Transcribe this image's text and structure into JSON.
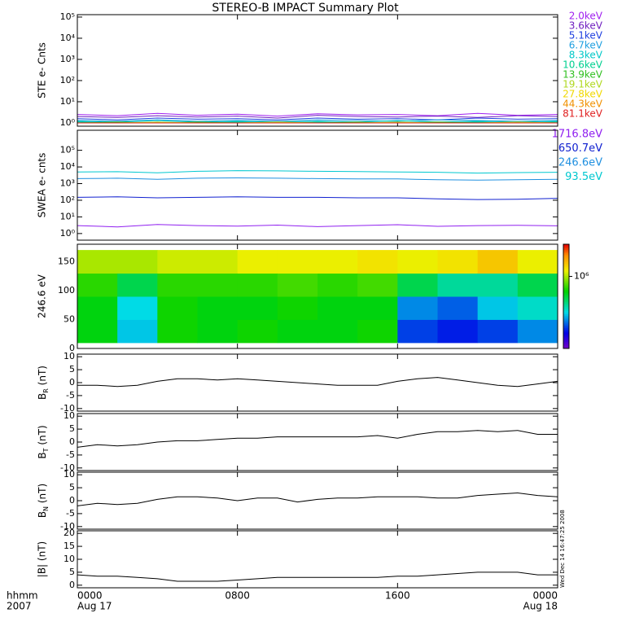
{
  "chart_data": [
    {
      "type": "line",
      "title": "STEREO-B IMPACT Summary Plot",
      "ylabel": "STE e- Cnts",
      "log": true,
      "ylim": [
        0.7,
        130000
      ],
      "yticks": [
        {
          "value": 1,
          "label": "10⁰"
        },
        {
          "value": 10,
          "label": "10¹"
        },
        {
          "value": 100,
          "label": "10²"
        },
        {
          "value": 1000,
          "label": "10³"
        },
        {
          "value": 10000,
          "label": "10⁴"
        },
        {
          "value": 100000,
          "label": "10⁵"
        }
      ],
      "xlim": [
        0,
        24
      ],
      "xticks": [
        0,
        8,
        16,
        24
      ],
      "x": [
        0,
        2,
        4,
        6,
        8,
        10,
        12,
        14,
        16,
        18,
        20,
        22,
        24
      ],
      "series": [
        {
          "name": "2.0keV",
          "color": "#a020f0",
          "values": [
            2.5,
            2.2,
            2.8,
            2.3,
            2.6,
            2.1,
            2.7,
            2.4,
            2.5,
            2.2,
            2.8,
            2.3,
            2.5
          ]
        },
        {
          "name": "3.6keV",
          "color": "#7020c0",
          "values": [
            2,
            1.8,
            2.2,
            1.9,
            2.1,
            1.7,
            2.3,
            2,
            1.9,
            2.1,
            1.8,
            2.2,
            2
          ]
        },
        {
          "name": "5.1keV",
          "color": "#2040e0",
          "values": [
            1.6,
            1.4,
            1.7,
            1.5,
            1.6,
            1.4,
            1.7,
            1.5,
            1.6,
            1.4,
            1.7,
            1.5,
            1.6
          ]
        },
        {
          "name": "6.7keV",
          "color": "#20a0e0",
          "values": [
            1.3,
            1.2,
            1.4,
            1.2,
            1.3,
            1.2,
            1.4,
            1.3,
            1.2,
            1.4,
            1.3,
            1.2,
            1.3
          ]
        },
        {
          "name": "8.3keV",
          "color": "#00c8c8",
          "values": [
            1.2,
            1.1,
            1.3,
            1.1,
            1.2,
            1.1,
            1.2,
            1.1,
            1.3,
            1.1,
            1.2,
            1.1,
            1.2
          ]
        },
        {
          "name": "10.6keV",
          "color": "#00d090",
          "values": [
            1.1,
            1,
            1.1,
            1,
            1.1,
            1,
            1.1,
            1,
            1.1,
            1,
            1.1,
            1,
            1.1
          ]
        },
        {
          "name": "13.9keV",
          "color": "#30c020",
          "values": [
            1,
            1.1,
            1,
            1.1,
            1,
            1.1,
            1,
            1.1,
            1,
            1.1,
            1,
            1.1,
            1
          ]
        },
        {
          "name": "19.1keV",
          "color": "#b0d820",
          "values": [
            1,
            1,
            1.1,
            1,
            1,
            1.1,
            1,
            1,
            1.1,
            1,
            1,
            1.1,
            1
          ]
        },
        {
          "name": "27.8keV",
          "color": "#f0d800",
          "values": [
            1,
            1,
            1,
            1,
            1,
            1,
            1,
            1,
            1,
            1,
            1,
            1,
            1
          ]
        },
        {
          "name": "44.3keV",
          "color": "#f09000",
          "values": [
            1,
            1,
            1,
            1,
            1,
            1,
            1,
            1,
            1,
            1,
            1,
            1,
            1
          ]
        },
        {
          "name": "81.1keV",
          "color": "#e02020",
          "values": [
            1,
            1,
            1,
            1,
            1,
            1,
            1,
            1,
            1,
            1,
            1,
            1,
            1
          ]
        }
      ]
    },
    {
      "type": "line",
      "ylabel": "SWEA e- cnts",
      "log": true,
      "ylim": [
        0.4,
        1600000
      ],
      "yticks": [
        {
          "value": 1,
          "label": "10⁰"
        },
        {
          "value": 10,
          "label": "10¹"
        },
        {
          "value": 100,
          "label": "10²"
        },
        {
          "value": 1000,
          "label": "10³"
        },
        {
          "value": 10000,
          "label": "10⁴"
        },
        {
          "value": 100000,
          "label": "10⁵"
        }
      ],
      "xlim": [
        0,
        24
      ],
      "xticks": [
        0,
        8,
        16,
        24
      ],
      "x": [
        0,
        2,
        4,
        6,
        8,
        10,
        12,
        14,
        16,
        18,
        20,
        22,
        24
      ],
      "series": [
        {
          "name": "1716.8eV",
          "color": "#9020f0",
          "values": [
            3,
            2.5,
            3.5,
            3,
            2.8,
            3.2,
            2.6,
            3,
            3.4,
            2.7,
            3,
            3.1,
            2.9
          ]
        },
        {
          "name": "650.7eV",
          "color": "#1020d0",
          "values": [
            150,
            160,
            140,
            150,
            160,
            150,
            150,
            140,
            140,
            120,
            110,
            115,
            130
          ]
        },
        {
          "name": "246.6eV",
          "color": "#2090e0",
          "values": [
            2000,
            2100,
            1800,
            2100,
            2200,
            2100,
            2000,
            1900,
            1900,
            1700,
            1600,
            1700,
            1800
          ]
        },
        {
          "name": "93.5eV",
          "color": "#00c8d0",
          "values": [
            5000,
            5200,
            4500,
            5500,
            6000,
            5800,
            5500,
            5300,
            5000,
            4800,
            4300,
            4600,
            4800
          ]
        }
      ]
    },
    {
      "type": "heatmap",
      "ylabel": "246.6 eV",
      "ylim": [
        0,
        180
      ],
      "yticks": [
        0,
        50,
        100,
        150
      ],
      "xlim": [
        0,
        24
      ],
      "xticks": [
        0,
        8,
        16,
        24
      ],
      "x_bins": [
        0,
        2,
        4,
        6,
        8,
        10,
        12,
        14,
        16,
        18,
        20,
        22,
        24
      ],
      "y_bins": [
        10,
        50,
        90,
        130,
        170
      ],
      "zlim": [
        100000,
        2800000
      ],
      "zticks": [
        {
          "value": 1000000,
          "label": "10⁶"
        }
      ],
      "z": [
        [
          600000,
          600000,
          700000,
          1000000
        ],
        [
          300000,
          320000,
          500000,
          1000000
        ],
        [
          650000,
          650000,
          700000,
          1100000
        ],
        [
          600000,
          600000,
          700000,
          1100000
        ],
        [
          650000,
          600000,
          700000,
          1200000
        ],
        [
          600000,
          650000,
          750000,
          1200000
        ],
        [
          600000,
          600000,
          700000,
          1200000
        ],
        [
          650000,
          600000,
          750000,
          1300000
        ],
        [
          200000,
          250000,
          500000,
          1200000
        ],
        [
          180000,
          220000,
          400000,
          1300000
        ],
        [
          200000,
          300000,
          400000,
          1500000
        ],
        [
          250000,
          350000,
          500000,
          1200000
        ]
      ]
    },
    {
      "type": "line",
      "ylabel": {
        "main": "B",
        "sub": "R",
        "unit": "(nT)"
      },
      "ylim": [
        -11,
        11
      ],
      "yticks": [
        -10,
        -5,
        0,
        5,
        10
      ],
      "xlim": [
        0,
        24
      ],
      "xticks": [
        0,
        8,
        16,
        24
      ],
      "x": [
        0,
        1,
        2,
        3,
        4,
        5,
        6,
        7,
        8,
        9,
        10,
        11,
        12,
        13,
        14,
        15,
        16,
        17,
        18,
        19,
        20,
        21,
        22,
        23,
        24
      ],
      "series": [
        {
          "color": "#000000",
          "values": [
            -1,
            -1,
            -1.5,
            -1,
            0.5,
            1.5,
            1.5,
            1,
            1.5,
            1,
            0.5,
            0,
            -0.5,
            -1,
            -1,
            -1,
            0.5,
            1.5,
            2,
            1,
            0,
            -1,
            -1.5,
            -0.5,
            0.5
          ]
        }
      ]
    },
    {
      "type": "line",
      "ylabel": {
        "main": "B",
        "sub": "T",
        "unit": "(nT)"
      },
      "ylim": [
        -11,
        11
      ],
      "yticks": [
        -10,
        -5,
        0,
        5,
        10
      ],
      "xlim": [
        0,
        24
      ],
      "xticks": [
        0,
        8,
        16,
        24
      ],
      "x": [
        0,
        1,
        2,
        3,
        4,
        5,
        6,
        7,
        8,
        9,
        10,
        11,
        12,
        13,
        14,
        15,
        16,
        17,
        18,
        19,
        20,
        21,
        22,
        23,
        24
      ],
      "series": [
        {
          "color": "#000000",
          "values": [
            -2,
            -1,
            -1.5,
            -1,
            0,
            0.5,
            0.5,
            1,
            1.5,
            1.5,
            2,
            2,
            2,
            2,
            2,
            2.5,
            1.5,
            3,
            4,
            4,
            4.5,
            4,
            4.5,
            3,
            3
          ]
        }
      ]
    },
    {
      "type": "line",
      "ylabel": {
        "main": "B",
        "sub": "N",
        "unit": "(nT)"
      },
      "ylim": [
        -11,
        11
      ],
      "yticks": [
        -10,
        -5,
        0,
        5,
        10
      ],
      "xlim": [
        0,
        24
      ],
      "xticks": [
        0,
        8,
        16,
        24
      ],
      "x": [
        0,
        1,
        2,
        3,
        4,
        5,
        6,
        7,
        8,
        9,
        10,
        11,
        12,
        13,
        14,
        15,
        16,
        17,
        18,
        19,
        20,
        21,
        22,
        23,
        24
      ],
      "series": [
        {
          "color": "#000000",
          "values": [
            -2,
            -1,
            -1.5,
            -1,
            0.5,
            1.5,
            1.5,
            1,
            0,
            1,
            1,
            -0.5,
            0.5,
            1,
            1,
            1.5,
            1.5,
            1.5,
            1,
            1,
            2,
            2.5,
            3,
            2,
            1.5
          ]
        }
      ]
    },
    {
      "type": "line",
      "ylabel": "|B| (nT)",
      "ylim": [
        -1,
        21
      ],
      "yticks": [
        0,
        5,
        10,
        15,
        20
      ],
      "xlim": [
        0,
        24
      ],
      "xticks": [
        {
          "value": 0,
          "label": "0000"
        },
        {
          "value": 8,
          "label": "0800"
        },
        {
          "value": 16,
          "label": "1600"
        },
        {
          "value": 24,
          "label": "0000"
        }
      ],
      "date_labels": [
        {
          "value": 0,
          "label": "Aug 17"
        },
        {
          "value": 24,
          "label": "Aug 18"
        }
      ],
      "x_axis_labels": [
        "hhmm",
        "2007"
      ],
      "x": [
        0,
        1,
        2,
        3,
        4,
        5,
        6,
        7,
        8,
        9,
        10,
        11,
        12,
        13,
        14,
        15,
        16,
        17,
        18,
        19,
        20,
        21,
        22,
        23,
        24
      ],
      "series": [
        {
          "color": "#000000",
          "values": [
            4,
            3.5,
            3.5,
            3,
            2.5,
            1.5,
            1.5,
            1.5,
            2,
            2.5,
            3,
            3,
            3,
            3,
            3,
            3,
            3.5,
            3.5,
            4,
            4.5,
            5,
            5,
            5,
            4,
            4
          ]
        }
      ]
    }
  ],
  "footer": "Wed Dec 14 16:47:25 2008"
}
